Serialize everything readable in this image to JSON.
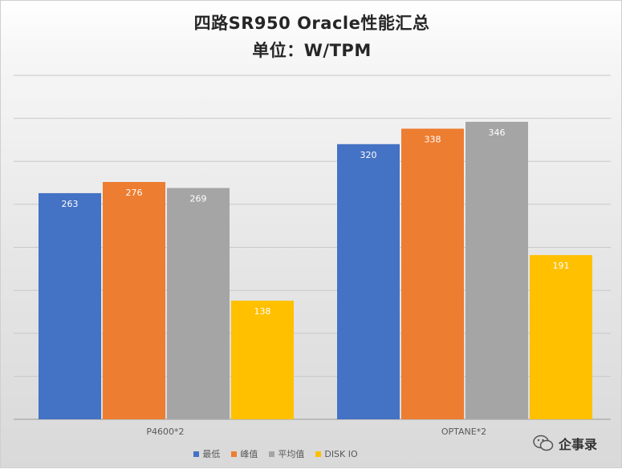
{
  "chart_data": {
    "type": "bar",
    "title": "四路SR950 Oracle性能汇总",
    "subtitle": "单位：W/TPM",
    "categories": [
      "P4600*2",
      "OPTANE*2"
    ],
    "series": [
      {
        "name": "最低",
        "color": "#4472c4",
        "values": [
          263,
          320
        ]
      },
      {
        "name": "峰值",
        "color": "#ed7d31",
        "values": [
          276,
          338
        ]
      },
      {
        "name": "平均值",
        "color": "#a5a5a5",
        "values": [
          269,
          346
        ]
      },
      {
        "name": "DISK IO",
        "color": "#ffc000",
        "values": [
          138,
          191
        ]
      }
    ],
    "ylim": [
      0,
      400
    ],
    "grid": true,
    "legend_position": "bottom"
  },
  "watermark": {
    "text": "企事录",
    "icon": "wechat-icon"
  }
}
